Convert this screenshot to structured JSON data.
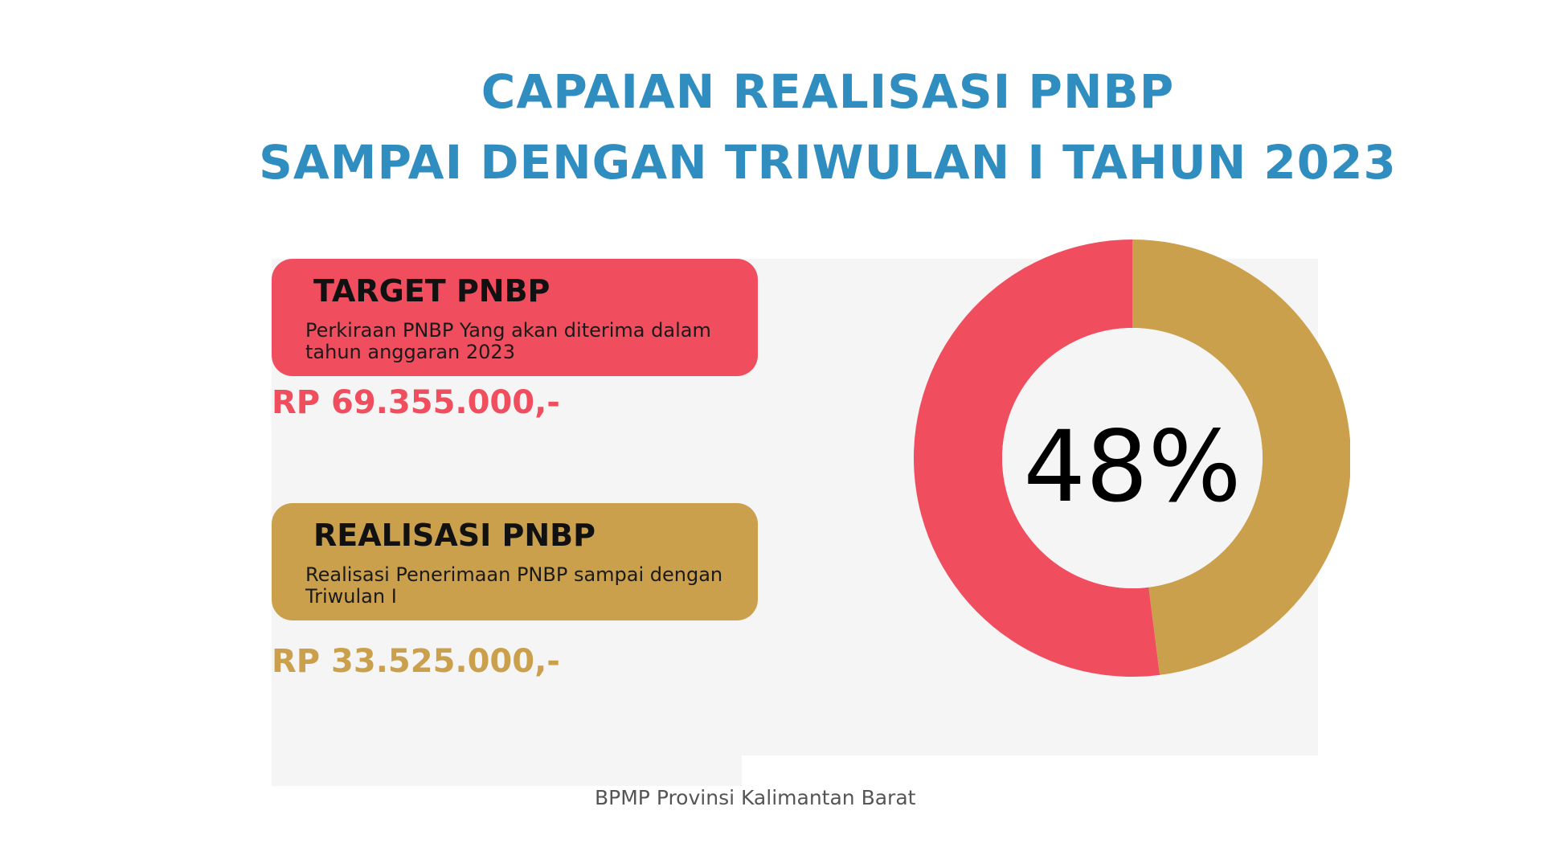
{
  "header": {
    "title_line1": "CAPAIAN REALISASI PNBP",
    "title_line2": "SAMPAI DENGAN TRIWULAN I TAHUN 2023"
  },
  "colors": {
    "title": "#2f8dc0",
    "target": "#f04e5e",
    "realisasi": "#cba04d",
    "background_panel": "#f5f5f5"
  },
  "target": {
    "title": "TARGET PNBP",
    "description": "Perkiraan PNBP Yang akan diterima dalam tahun anggaran 2023",
    "amount": "RP 69.355.000,-"
  },
  "realisasi": {
    "title": "REALISASI PNBP",
    "description": "Realisasi Penerimaan PNBP sampai dengan Triwulan I",
    "amount": "RP 33.525.000,-"
  },
  "chart_data": {
    "type": "pie",
    "center_label": "48%",
    "slices": [
      {
        "label": "",
        "value": 48,
        "color": "#cba04d"
      },
      {
        "label": "",
        "value": 52,
        "color": "#f04e5e"
      }
    ]
  },
  "footer": {
    "text": "BPMP Provinsi Kalimantan Barat"
  }
}
